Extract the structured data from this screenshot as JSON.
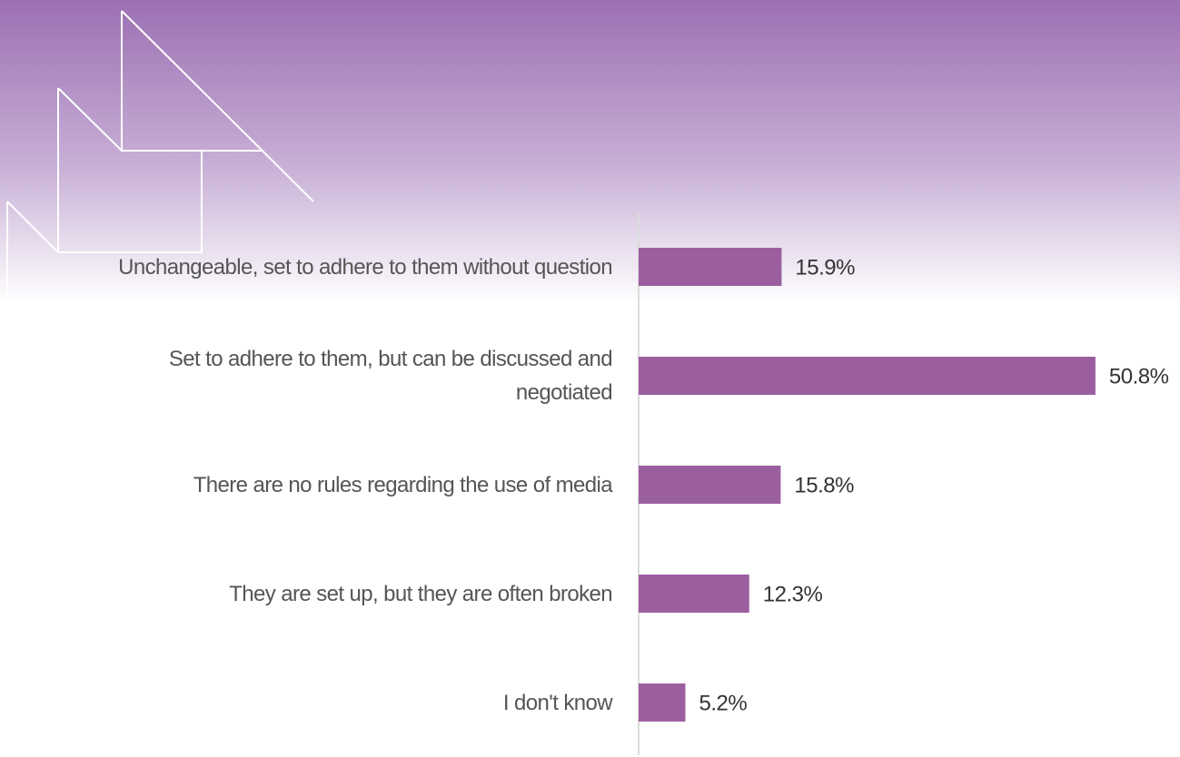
{
  "chart_data": {
    "type": "bar",
    "orientation": "horizontal",
    "categories": [
      "Unchangeable, set to adhere to them without question",
      "Set to adhere to them, but can be discussed and negotiated",
      "There are no rules regarding the use of media",
      "They are set up, but they are often broken",
      "I don't know"
    ],
    "values": [
      15.9,
      50.8,
      15.8,
      12.3,
      5.2
    ],
    "value_labels": [
      "15.9%",
      "50.8%",
      "15.8%",
      "12.3%",
      "5.2%"
    ],
    "color": "#9b5fa0"
  }
}
